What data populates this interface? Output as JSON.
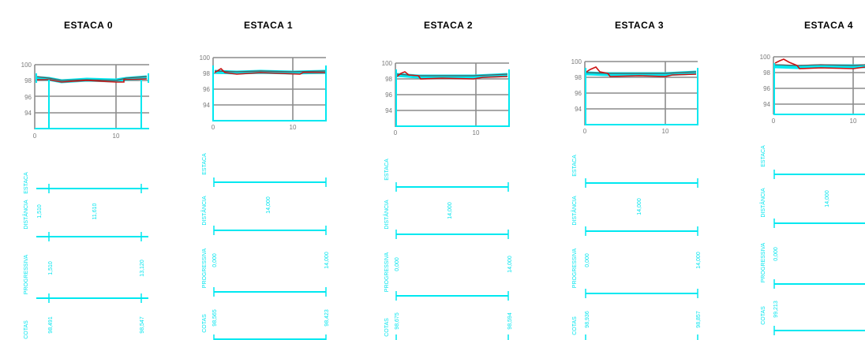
{
  "labels": {
    "estaca": "ESTACA",
    "distancia": "DISTÂNCIA",
    "progressiva": "PROGRESSIVA",
    "cotas": "COTAS"
  },
  "colors": {
    "cyan": "#00e8f0",
    "red": "#cc1111",
    "grid": "#8c8c8c",
    "text": "#000000"
  },
  "sheets": [
    {
      "title": "ESTACA  0",
      "yticks": [
        "100",
        "98",
        "96",
        "94"
      ],
      "xticks": [
        "0",
        "10"
      ],
      "distances": [
        "1,510",
        "11,610"
      ],
      "progressiva": [
        "1,510",
        "13,120"
      ],
      "cotas": [
        "98,491",
        "98,547"
      ]
    },
    {
      "title": "ESTACA  1",
      "yticks": [
        "100",
        "98",
        "96",
        "94"
      ],
      "xticks": [
        "0",
        "10"
      ],
      "distances": [
        "14,000"
      ],
      "progressiva": [
        "0,000",
        "14,000"
      ],
      "cotas": [
        "98,565",
        "98,423"
      ]
    },
    {
      "title": "ESTACA  2",
      "yticks": [
        "100",
        "98",
        "96",
        "94"
      ],
      "xticks": [
        "0",
        "10"
      ],
      "distances": [
        "14,000"
      ],
      "progressiva": [
        "0,000",
        "14,000"
      ],
      "cotas": [
        "98,675",
        "98,594"
      ]
    },
    {
      "title": "ESTACA  3",
      "yticks": [
        "100",
        "98",
        "96",
        "94"
      ],
      "xticks": [
        "0",
        "10"
      ],
      "distances": [
        "14,000"
      ],
      "progressiva": [
        "0,000",
        "14,000"
      ],
      "cotas": [
        "98,936",
        "98,857"
      ]
    },
    {
      "title": "ESTACA  4",
      "yticks": [
        "100",
        "98",
        "96",
        "94"
      ],
      "xticks": [
        "0",
        "10"
      ],
      "distances": [
        "14,000"
      ],
      "progressiva": [
        "0,000"
      ],
      "cotas": [
        "99,213"
      ]
    }
  ]
}
